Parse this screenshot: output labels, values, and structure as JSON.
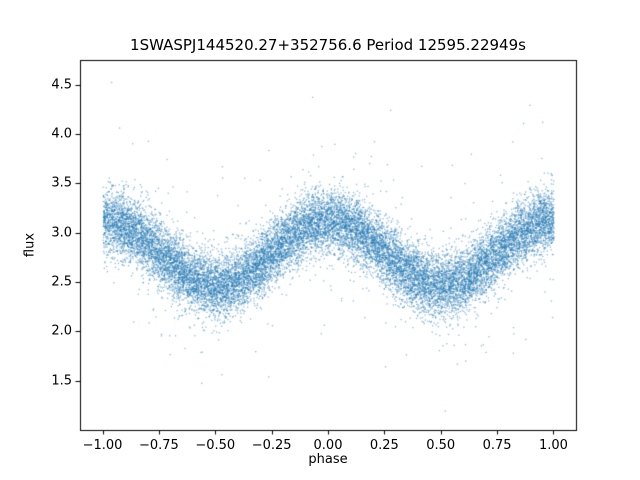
{
  "figure": {
    "background": "#ffffff"
  },
  "chart_data": {
    "type": "scatter",
    "title": "1SWASPJ144520.27+352756.6 Period 12595.22949s",
    "xlabel": "phase",
    "ylabel": "flux",
    "xlim": [
      -1.1,
      1.1
    ],
    "ylim": [
      1.0,
      4.75
    ],
    "x_ticks": [
      -1.0,
      -0.75,
      -0.5,
      -0.25,
      0.0,
      0.25,
      0.5,
      0.75,
      1.0
    ],
    "x_tick_labels": [
      "−1.00",
      "−0.75",
      "−0.50",
      "−0.25",
      "0.00",
      "0.25",
      "0.50",
      "0.75",
      "1.00"
    ],
    "y_ticks": [
      1.5,
      2.0,
      2.5,
      3.0,
      3.5,
      4.0,
      4.5
    ],
    "y_tick_labels": [
      "1.5",
      "2.0",
      "2.5",
      "3.0",
      "3.5",
      "4.0",
      "4.5"
    ],
    "grid": false,
    "legend": null,
    "marker_color": "#1f77b4",
    "marker_alpha": 0.5,
    "marker_size_px": 1.3,
    "n_points": 18000,
    "phase_range": [
      -1.0,
      1.0
    ],
    "model": {
      "type": "cosine",
      "description": "phase-folded light curve: flux = mean_flux + amplitude * cos(2*pi*(phase - peak_phase)) + noise",
      "mean_flux": 2.8,
      "amplitude": 0.33,
      "peak_phase": 0.0,
      "peak_flux": 3.13,
      "trough_flux": 2.47,
      "trough_phases": [
        -0.5,
        0.5
      ],
      "scatter_sigma": 0.16,
      "outlier_fraction": 0.03,
      "outlier_sigma": 0.45
    },
    "random_seed": 42
  }
}
